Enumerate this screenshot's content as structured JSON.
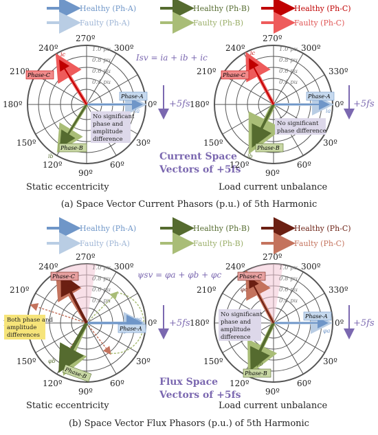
{
  "legend": {
    "healthy_a": "Healthy (Ph-A)",
    "healthy_b": "Healthy (Ph-B)",
    "healthy_c": "Healthy (Ph-C)",
    "faulty_a": "Faulty (Ph-A)",
    "faulty_b": "Faulty (Ph-B)",
    "faulty_c": "Faulty (Ph-C)"
  },
  "colors": {
    "healthy_a": "#6f96c8",
    "faulty_a": "#b9cde4",
    "healthy_b": "#556b2f",
    "faulty_b": "#a9bd77",
    "healthy_c_top": "#c00000",
    "faulty_c_top": "#ee5b5b",
    "healthy_c_bottom": "#6b1f12",
    "faulty_c_bottom": "#c4735d",
    "accent": "#7b68b0"
  },
  "angles": [
    "0º",
    "30º",
    "60º",
    "90º",
    "120º",
    "150º",
    "180º",
    "210º",
    "240º",
    "270º",
    "300º",
    "330º"
  ],
  "magnitudes": [
    "0.4 pu",
    "0.6 pu",
    "0.8 pu",
    "1.0 pu"
  ],
  "phase_labels": {
    "a": "Phase-A",
    "b": "Phase-B",
    "c": "Phase-C"
  },
  "top": {
    "equation": "Isv = ia + ib + ic",
    "rotation": "+5fs",
    "center_title_1": "Current Space",
    "center_title_2": "Vectors of +5fs",
    "left_note": "No significant phase and amplitude difference",
    "right_note": "No significant phase difference",
    "sym_a": "ia",
    "sym_b": "ib",
    "sym_c": "ic",
    "left_caption": "Static eccentricity",
    "right_caption": "Load current unbalance",
    "subcaption": "(a) Space Vector Current Phasors (p.u.) of 5th Harmonic"
  },
  "bottom": {
    "equation": "ψsv = φa + φb + φc",
    "rotation": "+5fs",
    "center_title_1": "Flux Space",
    "center_title_2": "Vectors of +5fs",
    "left_note": "Both phase and amplitude differences",
    "right_note": "No significant phase and amplitude difference",
    "sym_a": "φa",
    "sym_b": "φb",
    "sym_c": "φc",
    "left_caption": "Static eccentricity",
    "right_caption": "Load current unbalance",
    "subcaption": "(b) Space Vector Flux Phasors (p.u.) of 5th Harmonic"
  }
}
